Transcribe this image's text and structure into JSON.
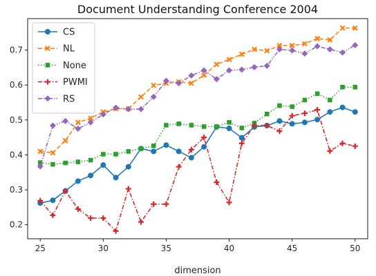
{
  "chart_data": {
    "type": "line",
    "title": "Document Understanding Conference 2004",
    "xlabel": "dimension",
    "ylabel": "",
    "x": [
      25,
      26,
      27,
      28,
      29,
      30,
      31,
      32,
      33,
      34,
      35,
      36,
      37,
      38,
      39,
      40,
      41,
      42,
      43,
      44,
      45,
      46,
      47,
      48,
      49,
      50
    ],
    "xlim": [
      24,
      51
    ],
    "ylim": [
      0.16,
      0.79
    ],
    "xticks": [
      25,
      30,
      35,
      40,
      45,
      50
    ],
    "yticks": [
      0.2,
      0.3,
      0.4,
      0.5,
      0.6,
      0.7
    ],
    "grid": false,
    "legend_position": "top-left",
    "series": [
      {
        "name": "CS",
        "color": "#1f77b4",
        "linestyle": "solid",
        "marker": "circle",
        "values": [
          0.262,
          0.27,
          0.297,
          0.325,
          0.341,
          0.371,
          0.335,
          0.366,
          0.418,
          0.41,
          0.428,
          0.41,
          0.392,
          0.423,
          0.48,
          0.476,
          0.449,
          0.48,
          0.484,
          0.497,
          0.489,
          0.493,
          0.501,
          0.523,
          0.536,
          0.523
        ]
      },
      {
        "name": "NL",
        "color": "#ff7f0e",
        "linestyle": "dashed",
        "marker": "x",
        "values": [
          0.41,
          0.406,
          0.441,
          0.493,
          0.505,
          0.523,
          0.532,
          0.532,
          0.566,
          0.599,
          0.605,
          0.609,
          0.605,
          0.628,
          0.659,
          0.673,
          0.688,
          0.702,
          0.698,
          0.713,
          0.713,
          0.718,
          0.733,
          0.729,
          0.763,
          0.763
        ]
      },
      {
        "name": "None",
        "color": "#2ca02c",
        "linestyle": "dotted",
        "marker": "square",
        "values": [
          0.378,
          0.373,
          0.377,
          0.38,
          0.385,
          0.402,
          0.402,
          0.41,
          0.418,
          0.426,
          0.485,
          0.489,
          0.485,
          0.481,
          0.481,
          0.493,
          0.477,
          0.491,
          0.517,
          0.541,
          0.538,
          0.557,
          0.575,
          0.557,
          0.594,
          0.594
        ]
      },
      {
        "name": "PWMI",
        "color": "#d62728",
        "linestyle": "dashdot",
        "marker": "plus",
        "values": [
          0.269,
          0.227,
          0.297,
          0.245,
          0.219,
          0.219,
          0.182,
          0.303,
          0.208,
          0.259,
          0.259,
          0.366,
          0.415,
          0.45,
          0.322,
          0.264,
          0.433,
          0.484,
          0.484,
          0.468,
          0.512,
          0.519,
          0.529,
          0.411,
          0.433,
          0.425
        ]
      },
      {
        "name": "RS",
        "color": "#9467bd",
        "linestyle": "dashdotdot",
        "marker": "diamond",
        "values": [
          0.367,
          0.484,
          0.497,
          0.475,
          0.493,
          0.516,
          0.535,
          0.531,
          0.531,
          0.566,
          0.612,
          0.605,
          0.627,
          0.642,
          0.617,
          0.642,
          0.644,
          0.651,
          0.655,
          0.702,
          0.699,
          0.69,
          0.711,
          0.702,
          0.693,
          0.714
        ]
      }
    ]
  }
}
